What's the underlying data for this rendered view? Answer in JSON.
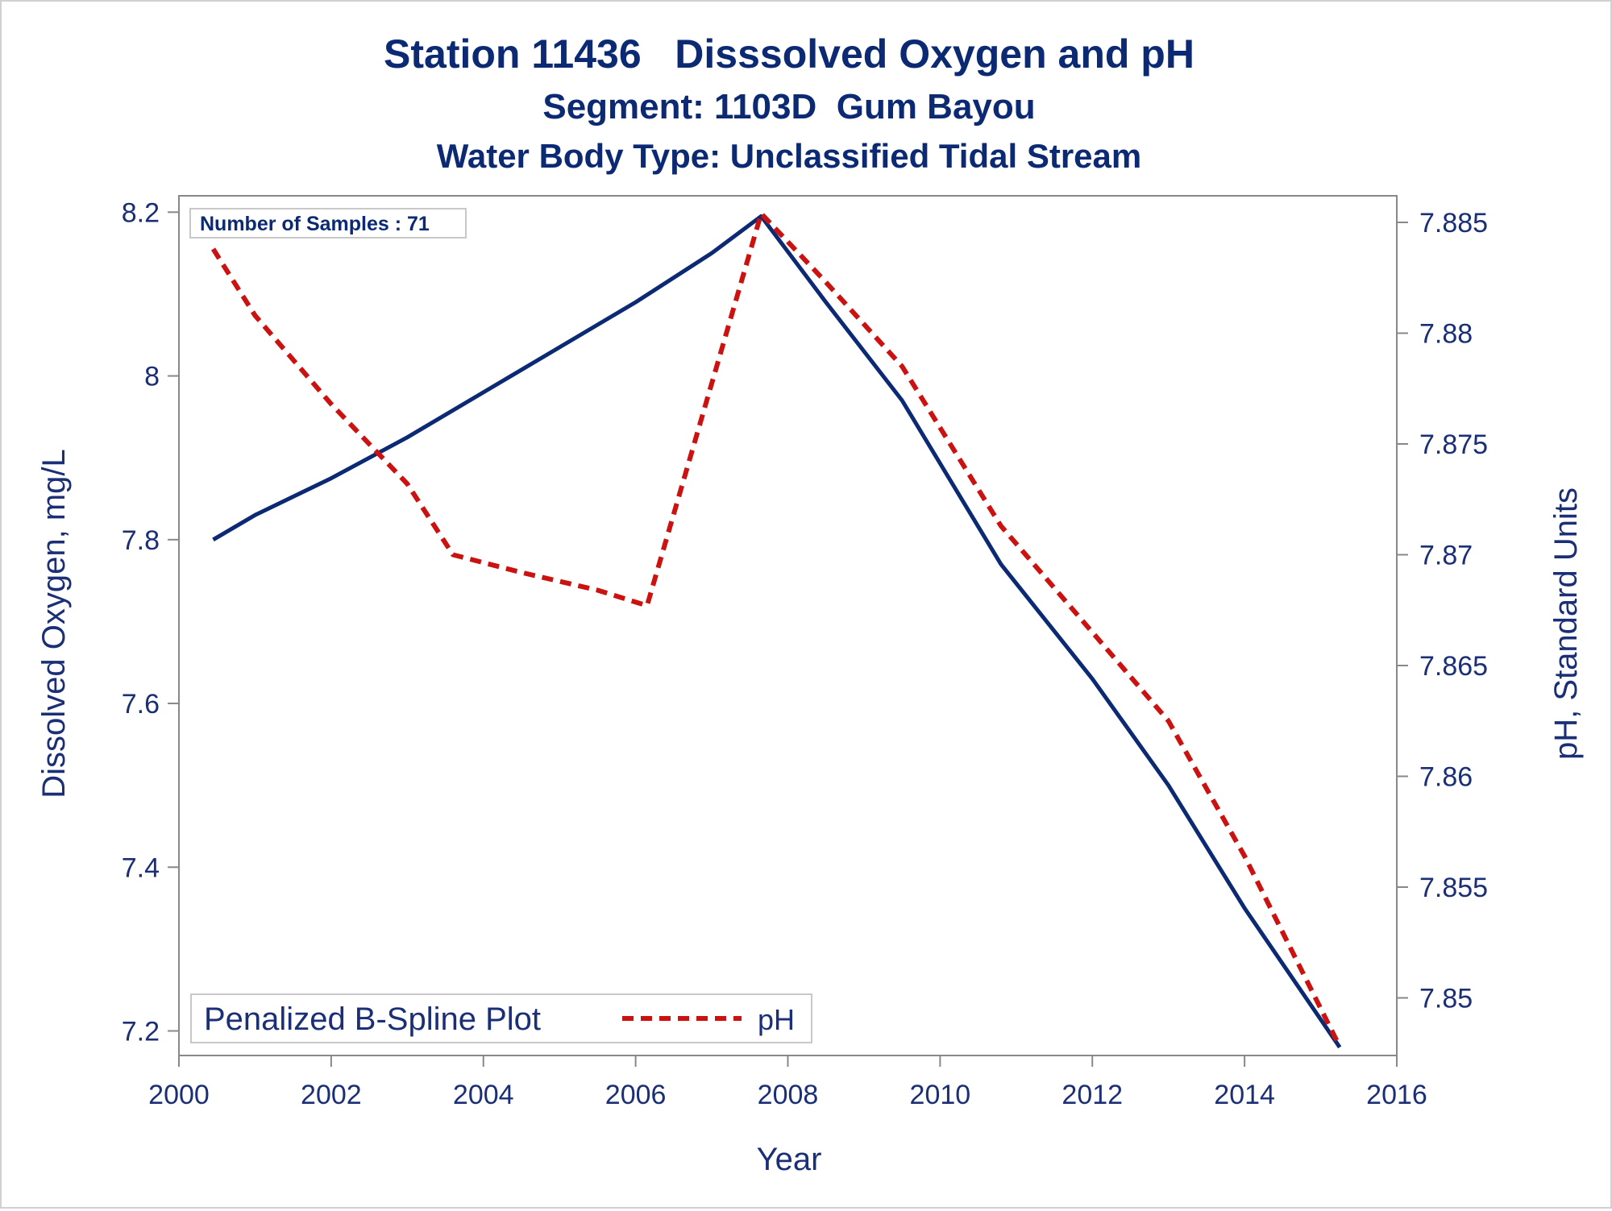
{
  "chart_data": {
    "type": "line",
    "title": "Station 11436   Disssolved Oxygen and pH",
    "subtitle": "Segment: 1103D  Gum Bayou",
    "subtitle2": "Water Body Type: Unclassified Tidal Stream",
    "xlabel": "Year",
    "ylabel_left": "Dissolved Oxygen, mg/L",
    "ylabel_right": "pH, Standard Units",
    "xlim": [
      2000,
      2016
    ],
    "ylim_left": [
      7.17,
      8.22
    ],
    "ylim_right": [
      7.8474,
      7.8862
    ],
    "x_ticks": [
      "2000",
      "2002",
      "2004",
      "2006",
      "2008",
      "2010",
      "2012",
      "2014",
      "2016"
    ],
    "y_left_ticks": [
      "7.2",
      "7.4",
      "7.6",
      "7.8",
      "8",
      "8.2"
    ],
    "y_right_ticks": [
      "7.85",
      "7.855",
      "7.86",
      "7.865",
      "7.87",
      "7.875",
      "7.88",
      "7.885"
    ],
    "annotation": "Number of Samples : 71",
    "legend": {
      "title": "Penalized B-Spline Plot",
      "position": "bottom-left",
      "entries": [
        "pH"
      ]
    },
    "colors": {
      "do": "#0b2a73",
      "ph": "#cc1111",
      "text": "#1a2f75",
      "axis": "#888888"
    },
    "series": [
      {
        "axis": "left",
        "style": "solid",
        "x": [
          2000.45,
          2001.0,
          2002.0,
          2003.0,
          2004.0,
          2005.0,
          2006.0,
          2007.0,
          2007.65,
          2008.5,
          2009.5,
          2010.8,
          2012.0,
          2013.0,
          2014.0,
          2015.25
        ],
        "y": [
          7.8,
          7.83,
          7.875,
          7.925,
          7.98,
          8.035,
          8.09,
          8.15,
          8.195,
          8.09,
          7.97,
          7.77,
          7.63,
          7.5,
          7.35,
          7.18
        ]
      },
      {
        "axis": "right",
        "name": "pH",
        "style": "dashed",
        "x": [
          2000.45,
          2001.0,
          2002.0,
          2003.0,
          2003.6,
          2004.5,
          2005.5,
          2006.15,
          2007.65,
          2008.5,
          2009.5,
          2010.8,
          2012.0,
          2013.0,
          2014.0,
          2015.25
        ],
        "y": [
          7.8838,
          7.8808,
          7.8768,
          7.8732,
          7.87,
          7.8692,
          7.8684,
          7.8677,
          7.8854,
          7.8823,
          7.8785,
          7.8713,
          7.8665,
          7.8625,
          7.8564,
          7.8478
        ]
      }
    ]
  }
}
